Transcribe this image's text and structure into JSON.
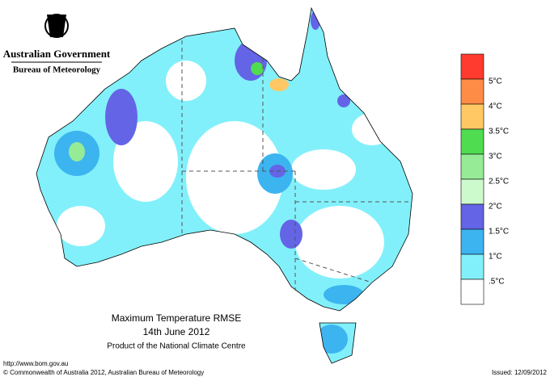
{
  "header": {
    "government": "Australian Government",
    "bureau": "Bureau of Meteorology"
  },
  "title": {
    "line1": "Maximum Temperature RMSE",
    "line2": "14th June 2012",
    "line3": "Product of the National Climate Centre"
  },
  "legend": {
    "colors": [
      "#ff3b2f",
      "#ff8c46",
      "#ffc864",
      "#50dc50",
      "#96eb96",
      "#cdfacd",
      "#6464e6",
      "#3cb4f0",
      "#82f0fa",
      "#ffffff"
    ],
    "labels": [
      "5°C",
      "4°C",
      "3.5°C",
      "3°C",
      "2.5°C",
      "2°C",
      "1.5°C",
      "1°C",
      ".5°C"
    ]
  },
  "footer": {
    "url": "http://www.bom.gov.au",
    "copyright": "© Commonwealth of Australia 2012, Australian Bureau of Meteorology",
    "issued": "Issued: 12/09/2012"
  }
}
